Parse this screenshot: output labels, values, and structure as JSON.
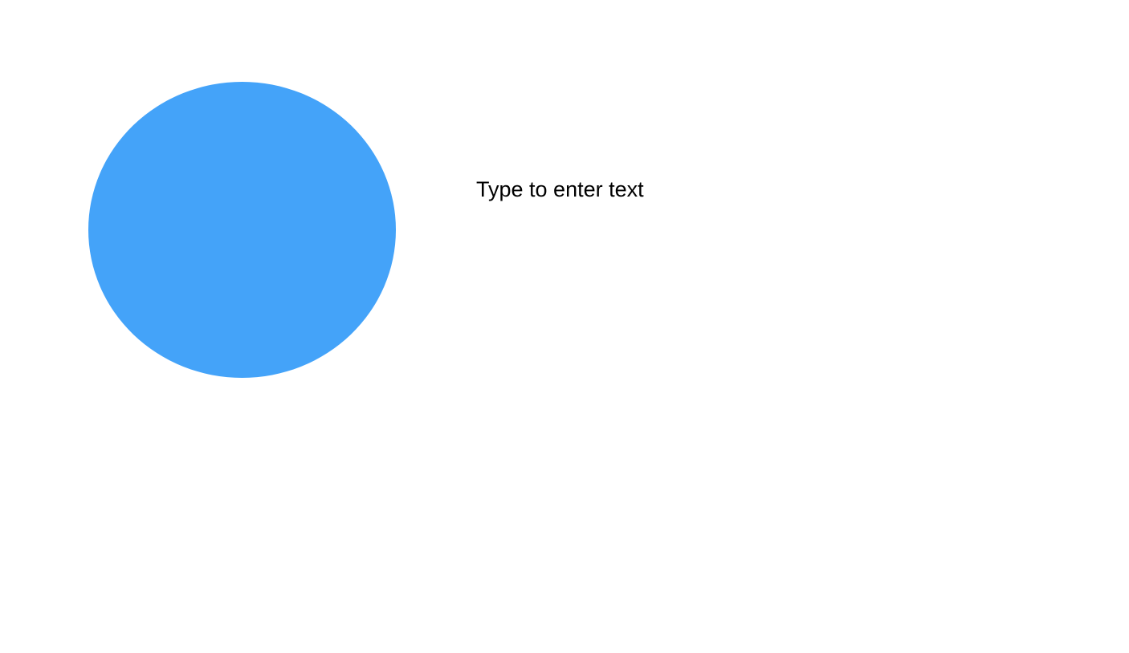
{
  "canvas": {
    "background_color": "#ffffff"
  },
  "shapes": {
    "ellipse": {
      "type": "ellipse",
      "fill_color": "#44a3f9"
    }
  },
  "text_box": {
    "placeholder": "Type to enter text",
    "text_color": "#000000"
  }
}
